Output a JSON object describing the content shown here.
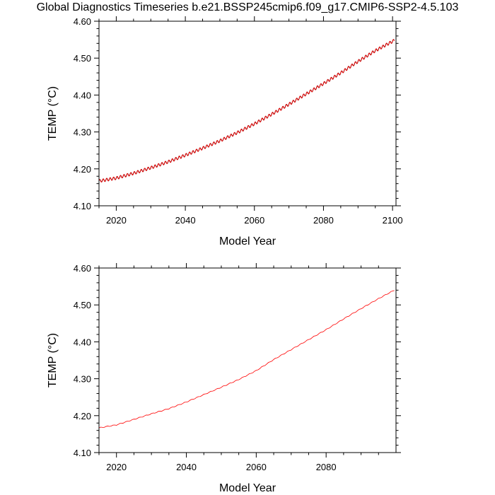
{
  "page_title": "Global Diagnostics Timeseries b.e21.BSSP245cmip6.f09_g17.CMIP6-SSP2-4.5.103",
  "chart_data": [
    {
      "type": "line",
      "title": "",
      "xlabel": "Model Year",
      "ylabel": "TEMP (°C)",
      "xlim": [
        2015,
        2101
      ],
      "ylim": [
        4.1,
        4.6
      ],
      "x_ticks": [
        2020,
        2040,
        2060,
        2080,
        2100
      ],
      "x_tick_labels": [
        "2020",
        "2040",
        "2060",
        "2080",
        "2100"
      ],
      "y_ticks": [
        4.1,
        4.2,
        4.3,
        4.4,
        4.5,
        4.6
      ],
      "y_tick_labels": [
        "4.10",
        "4.20",
        "4.30",
        "4.40",
        "4.50",
        "4.60"
      ],
      "grid": false,
      "seasonal_amplitude": 0.004,
      "series": [
        {
          "color": "#000000",
          "x": [
            2015,
            2020,
            2025,
            2030,
            2035,
            2040,
            2045,
            2050,
            2055,
            2060,
            2065,
            2070,
            2075,
            2080,
            2085,
            2090,
            2095,
            2100.5
          ],
          "values": [
            4.167,
            4.175,
            4.188,
            4.203,
            4.219,
            4.237,
            4.256,
            4.276,
            4.298,
            4.322,
            4.348,
            4.375,
            4.403,
            4.431,
            4.46,
            4.491,
            4.52,
            4.548
          ]
        },
        {
          "color": "#ff0000",
          "x": [
            2015,
            2020,
            2025,
            2030,
            2035,
            2040,
            2045,
            2050,
            2055,
            2060,
            2065,
            2070,
            2075,
            2080,
            2085,
            2090,
            2095,
            2100.5
          ],
          "values": [
            4.167,
            4.175,
            4.188,
            4.203,
            4.219,
            4.237,
            4.256,
            4.276,
            4.298,
            4.322,
            4.348,
            4.375,
            4.403,
            4.431,
            4.46,
            4.491,
            4.52,
            4.548
          ]
        }
      ]
    },
    {
      "type": "line",
      "title": "",
      "xlabel": "Model Year",
      "ylabel": "TEMP (°C)",
      "xlim": [
        2015,
        2100
      ],
      "ylim": [
        4.1,
        4.6
      ],
      "x_ticks": [
        2020,
        2040,
        2060,
        2080
      ],
      "x_tick_labels": [
        "2020",
        "2040",
        "2060",
        "2080"
      ],
      "y_ticks": [
        4.1,
        4.2,
        4.3,
        4.4,
        4.5,
        4.6
      ],
      "y_tick_labels": [
        "4.10",
        "4.20",
        "4.30",
        "4.40",
        "4.50",
        "4.60"
      ],
      "grid": false,
      "series": [
        {
          "color": "#ff0000",
          "x": [
            2015,
            2020,
            2025,
            2030,
            2035,
            2040,
            2045,
            2050,
            2055,
            2060,
            2065,
            2070,
            2075,
            2080,
            2085,
            2090,
            2095,
            2099.5
          ],
          "values": [
            4.167,
            4.175,
            4.19,
            4.205,
            4.219,
            4.237,
            4.257,
            4.277,
            4.298,
            4.322,
            4.352,
            4.379,
            4.406,
            4.433,
            4.462,
            4.49,
            4.517,
            4.54
          ]
        }
      ]
    }
  ]
}
